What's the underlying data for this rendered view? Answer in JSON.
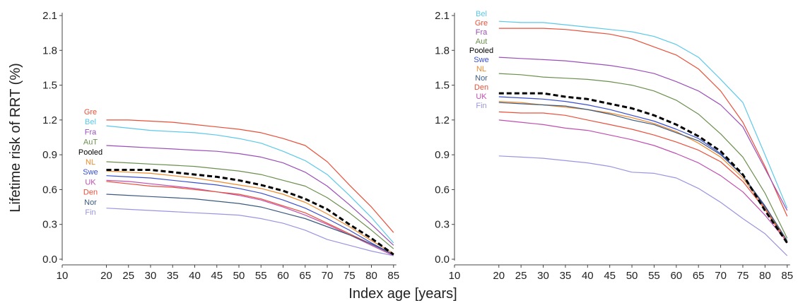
{
  "figure": {
    "ylabel": "Lifetime risk of RRT (%)",
    "xlabel": "Index age [years]"
  },
  "chart_data": [
    {
      "type": "line",
      "title": "",
      "xlim": [
        10,
        86
      ],
      "ylim": [
        0,
        2.1
      ],
      "xticks": [
        10,
        20,
        25,
        30,
        35,
        40,
        45,
        50,
        55,
        60,
        65,
        70,
        75,
        80,
        85
      ],
      "yticks": [
        "0.0",
        "0.3",
        "0.6",
        "0.9",
        "1.2",
        "1.5",
        "1.8",
        "2.1"
      ],
      "x": [
        20,
        25,
        30,
        35,
        40,
        45,
        50,
        55,
        60,
        65,
        70,
        75,
        80,
        85
      ],
      "label_order": [
        "Gre",
        "Bel",
        "Fra",
        "AuT",
        "Pooled",
        "NL",
        "Swe",
        "UK",
        "Den",
        "Nor",
        "Fin"
      ],
      "series": [
        {
          "name": "Gre",
          "color": "#e8503a",
          "values": [
            1.2,
            1.2,
            1.19,
            1.18,
            1.16,
            1.14,
            1.12,
            1.09,
            1.04,
            0.98,
            0.84,
            0.64,
            0.45,
            0.23
          ]
        },
        {
          "name": "Bel",
          "color": "#5bc8e8",
          "values": [
            1.15,
            1.13,
            1.11,
            1.1,
            1.09,
            1.07,
            1.04,
            1.0,
            0.93,
            0.85,
            0.73,
            0.55,
            0.36,
            0.14
          ]
        },
        {
          "name": "Fra",
          "color": "#9b4fb8",
          "values": [
            0.98,
            0.97,
            0.96,
            0.95,
            0.94,
            0.93,
            0.91,
            0.88,
            0.83,
            0.75,
            0.63,
            0.47,
            0.3,
            0.12
          ]
        },
        {
          "name": "AuT",
          "color": "#6b8f4e",
          "values": [
            0.84,
            0.83,
            0.82,
            0.81,
            0.8,
            0.78,
            0.76,
            0.73,
            0.68,
            0.63,
            0.53,
            0.4,
            0.25,
            0.09
          ]
        },
        {
          "name": "Pooled",
          "color": "#000000",
          "dashed": true,
          "values": [
            0.77,
            0.77,
            0.77,
            0.75,
            0.73,
            0.71,
            0.68,
            0.64,
            0.59,
            0.52,
            0.43,
            0.3,
            0.18,
            0.04
          ]
        },
        {
          "name": "NL",
          "color": "#f08a2c",
          "values": [
            0.76,
            0.75,
            0.74,
            0.72,
            0.7,
            0.67,
            0.64,
            0.61,
            0.56,
            0.49,
            0.39,
            0.28,
            0.16,
            0.05
          ]
        },
        {
          "name": "Swe",
          "color": "#3a4fd0",
          "values": [
            0.72,
            0.71,
            0.7,
            0.68,
            0.66,
            0.64,
            0.61,
            0.57,
            0.51,
            0.44,
            0.35,
            0.25,
            0.14,
            0.04
          ]
        },
        {
          "name": "UK",
          "color": "#c04fb0",
          "values": [
            0.68,
            0.67,
            0.65,
            0.63,
            0.61,
            0.58,
            0.55,
            0.51,
            0.45,
            0.38,
            0.3,
            0.21,
            0.12,
            0.03
          ]
        },
        {
          "name": "Den",
          "color": "#e8503a",
          "values": [
            0.67,
            0.65,
            0.63,
            0.62,
            0.6,
            0.58,
            0.56,
            0.52,
            0.46,
            0.4,
            0.31,
            0.22,
            0.13,
            0.04
          ]
        },
        {
          "name": "Nor",
          "color": "#3c5a80",
          "values": [
            0.56,
            0.55,
            0.54,
            0.53,
            0.52,
            0.5,
            0.48,
            0.45,
            0.4,
            0.35,
            0.28,
            0.21,
            0.13,
            0.04
          ]
        },
        {
          "name": "Fin",
          "color": "#9a95e0",
          "values": [
            0.44,
            0.43,
            0.42,
            0.41,
            0.4,
            0.39,
            0.38,
            0.35,
            0.31,
            0.25,
            0.17,
            0.12,
            0.07,
            0.03
          ]
        }
      ]
    },
    {
      "type": "line",
      "title": "",
      "xlim": [
        10,
        86
      ],
      "ylim": [
        0,
        2.1
      ],
      "xticks": [
        10,
        20,
        25,
        30,
        35,
        40,
        45,
        50,
        55,
        60,
        65,
        70,
        75,
        80,
        85
      ],
      "yticks": [
        "0.0",
        "0.3",
        "0.6",
        "0.9",
        "1.2",
        "1.5",
        "1.8",
        "2.1"
      ],
      "x": [
        20,
        25,
        30,
        35,
        40,
        45,
        50,
        55,
        60,
        65,
        70,
        75,
        80,
        85
      ],
      "label_order": [
        "Bel",
        "Gre",
        "Fra",
        "Aut",
        "Pooled",
        "Swe",
        "NL",
        "Nor",
        "Den",
        "UK",
        "Fin"
      ],
      "series": [
        {
          "name": "Bel",
          "color": "#5bc8e8",
          "values": [
            2.05,
            2.04,
            2.04,
            2.02,
            2.0,
            1.98,
            1.96,
            1.92,
            1.85,
            1.74,
            1.55,
            1.35,
            0.9,
            0.44
          ]
        },
        {
          "name": "Gre",
          "color": "#e8503a",
          "values": [
            1.99,
            1.99,
            1.99,
            1.98,
            1.96,
            1.94,
            1.9,
            1.83,
            1.76,
            1.64,
            1.45,
            1.18,
            0.8,
            0.37
          ]
        },
        {
          "name": "Fra",
          "color": "#9b4fb8",
          "values": [
            1.74,
            1.73,
            1.72,
            1.71,
            1.69,
            1.67,
            1.64,
            1.6,
            1.53,
            1.45,
            1.33,
            1.14,
            0.78,
            0.42
          ]
        },
        {
          "name": "Aut",
          "color": "#6b8f4e",
          "values": [
            1.6,
            1.59,
            1.57,
            1.56,
            1.55,
            1.53,
            1.5,
            1.45,
            1.37,
            1.25,
            1.08,
            0.88,
            0.57,
            0.18
          ]
        },
        {
          "name": "Pooled",
          "color": "#000000",
          "dashed": true,
          "values": [
            1.43,
            1.43,
            1.43,
            1.4,
            1.38,
            1.34,
            1.3,
            1.24,
            1.16,
            1.06,
            0.93,
            0.73,
            0.42,
            0.14
          ]
        },
        {
          "name": "Swe",
          "color": "#3a4fd0",
          "values": [
            1.4,
            1.39,
            1.38,
            1.36,
            1.33,
            1.29,
            1.24,
            1.19,
            1.12,
            1.04,
            0.91,
            0.72,
            0.45,
            0.15
          ]
        },
        {
          "name": "NL",
          "color": "#f08a2c",
          "values": [
            1.36,
            1.35,
            1.33,
            1.31,
            1.29,
            1.26,
            1.22,
            1.17,
            1.1,
            1.0,
            0.88,
            0.7,
            0.44,
            0.15
          ]
        },
        {
          "name": "Nor",
          "color": "#3c5a80",
          "values": [
            1.35,
            1.34,
            1.33,
            1.32,
            1.29,
            1.25,
            1.2,
            1.16,
            1.09,
            1.02,
            0.9,
            0.72,
            0.46,
            0.16
          ]
        },
        {
          "name": "Den",
          "color": "#e8503a",
          "values": [
            1.27,
            1.26,
            1.26,
            1.24,
            1.2,
            1.16,
            1.12,
            1.07,
            1.01,
            0.94,
            0.84,
            0.67,
            0.43,
            0.14
          ]
        },
        {
          "name": "UK",
          "color": "#c04fb0",
          "values": [
            1.2,
            1.18,
            1.16,
            1.13,
            1.11,
            1.07,
            1.03,
            0.98,
            0.91,
            0.83,
            0.72,
            0.58,
            0.38,
            0.15
          ]
        },
        {
          "name": "Fin",
          "color": "#9a95e0",
          "values": [
            0.89,
            0.88,
            0.87,
            0.85,
            0.83,
            0.8,
            0.75,
            0.74,
            0.7,
            0.61,
            0.49,
            0.35,
            0.22,
            0.03
          ]
        }
      ]
    }
  ]
}
